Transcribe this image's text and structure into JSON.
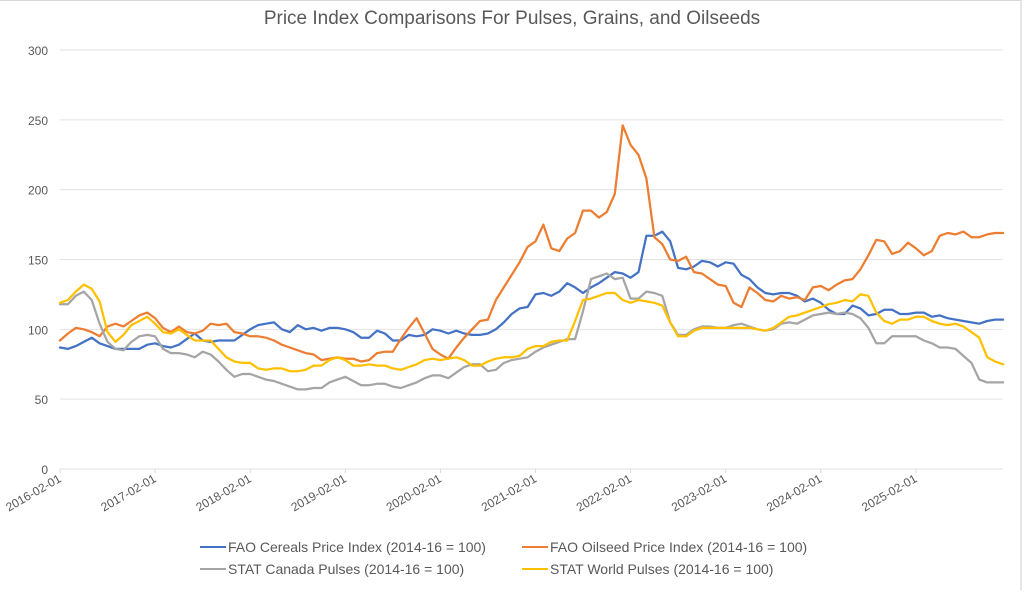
{
  "chart_data": {
    "type": "line",
    "title": "Price Index Comparisons For Pulses, Grains, and Oilseeds",
    "xlabel": "",
    "ylabel": "",
    "ylim": [
      0,
      300
    ],
    "yticks": [
      0,
      50,
      100,
      150,
      200,
      250,
      300
    ],
    "x_start": "2016-02-01",
    "x_end": "2026-01-01",
    "x_interval": "monthly",
    "xtick_labels": [
      "2016-02-01",
      "2017-02-01",
      "2018-02-01",
      "2019-02-01",
      "2020-02-01",
      "2021-02-01",
      "2022-02-01",
      "2023-02-01",
      "2024-02-01",
      "2025-02-01"
    ],
    "grid": "horizontal",
    "legend_position": "bottom",
    "series": [
      {
        "name": "FAO Cereals Price Index (2014-16 = 100)",
        "color": "#4472c4",
        "values": [
          87,
          86,
          88,
          91,
          94,
          90,
          88,
          86,
          86,
          86,
          86,
          89,
          90,
          88,
          87,
          89,
          93,
          97,
          92,
          91,
          92,
          92,
          92,
          96,
          100,
          103,
          104,
          105,
          100,
          98,
          103,
          100,
          101,
          99,
          101,
          101,
          100,
          98,
          94,
          94,
          99,
          97,
          92,
          92,
          96,
          95,
          96,
          100,
          99,
          97,
          99,
          97,
          96,
          96,
          97,
          100,
          105,
          111,
          115,
          116,
          125,
          126,
          124,
          127,
          133,
          130,
          126,
          130,
          133,
          137,
          141,
          140,
          137,
          141,
          167,
          167,
          170,
          163,
          144,
          143,
          145,
          149,
          148,
          145,
          148,
          147,
          139,
          136,
          130,
          126,
          125,
          126,
          126,
          124,
          120,
          122,
          119,
          114,
          111,
          111,
          117,
          115,
          110,
          111,
          114,
          114,
          111,
          111,
          112,
          112,
          109,
          110,
          108,
          107,
          106,
          105,
          104,
          106,
          107,
          107
        ]
      },
      {
        "name": "FAO Oilseed Price Index (2014-16 = 100)",
        "color": "#ed7d31",
        "values": [
          92,
          97,
          101,
          100,
          98,
          95,
          102,
          104,
          102,
          106,
          110,
          112,
          108,
          101,
          98,
          102,
          98,
          97,
          99,
          104,
          103,
          104,
          98,
          97,
          95,
          95,
          94,
          92,
          89,
          87,
          85,
          83,
          82,
          78,
          79,
          80,
          79,
          79,
          77,
          78,
          83,
          84,
          84,
          93,
          101,
          108,
          97,
          86,
          82,
          79,
          87,
          94,
          100,
          106,
          107,
          121,
          130,
          139,
          148,
          159,
          163,
          175,
          158,
          156,
          165,
          169,
          185,
          185,
          180,
          184,
          197,
          246,
          232,
          225,
          208,
          166,
          161,
          150,
          149,
          152,
          141,
          140,
          136,
          132,
          131,
          119,
          116,
          130,
          126,
          121,
          120,
          124,
          122,
          123,
          121,
          130,
          131,
          128,
          132,
          135,
          136,
          143,
          153,
          164,
          163,
          154,
          156,
          162,
          158,
          153,
          156,
          167,
          169,
          168,
          170,
          166,
          166,
          168,
          169,
          169
        ]
      },
      {
        "name": "STAT Canada Pulses (2014-16 = 100)",
        "color": "#a5a5a5",
        "values": [
          118,
          118,
          124,
          127,
          121,
          104,
          91,
          86,
          85,
          91,
          95,
          96,
          95,
          86,
          83,
          83,
          82,
          80,
          84,
          82,
          77,
          71,
          66,
          68,
          68,
          66,
          64,
          63,
          61,
          59,
          57,
          57,
          58,
          58,
          62,
          64,
          66,
          63,
          60,
          60,
          61,
          61,
          59,
          58,
          60,
          62,
          65,
          67,
          67,
          65,
          69,
          73,
          75,
          75,
          70,
          71,
          76,
          78,
          79,
          80,
          84,
          87,
          89,
          91,
          93,
          93,
          113,
          136,
          138,
          140,
          136,
          137,
          122,
          122,
          127,
          126,
          124,
          105,
          96,
          96,
          100,
          102,
          102,
          101,
          101,
          103,
          104,
          102,
          100,
          99,
          100,
          104,
          105,
          104,
          107,
          110,
          111,
          112,
          111,
          112,
          111,
          108,
          101,
          90,
          90,
          95,
          95,
          95,
          95,
          92,
          90,
          87,
          87,
          86,
          81,
          76,
          64,
          62,
          62,
          62
        ]
      },
      {
        "name": "STAT World Pulses (2014-16 = 100)",
        "color": "#ffc000",
        "values": [
          119,
          121,
          127,
          132,
          129,
          120,
          98,
          91,
          96,
          103,
          106,
          109,
          104,
          98,
          97,
          100,
          96,
          92,
          92,
          92,
          86,
          80,
          77,
          76,
          76,
          72,
          71,
          72,
          72,
          70,
          70,
          71,
          74,
          74,
          78,
          80,
          78,
          74,
          74,
          75,
          74,
          74,
          72,
          71,
          73,
          75,
          78,
          79,
          78,
          79,
          80,
          78,
          74,
          74,
          77,
          79,
          80,
          80,
          81,
          86,
          88,
          88,
          91,
          92,
          92,
          106,
          121,
          122,
          124,
          126,
          126,
          121,
          119,
          121,
          120,
          119,
          117,
          105,
          95,
          95,
          99,
          101,
          101,
          101,
          101,
          101,
          101,
          101,
          100,
          99,
          101,
          105,
          109,
          110,
          112,
          114,
          116,
          118,
          119,
          121,
          120,
          125,
          124,
          112,
          106,
          104,
          107,
          107,
          109,
          109,
          106,
          104,
          103,
          104,
          102,
          98,
          94,
          80,
          77,
          75
        ]
      }
    ]
  }
}
